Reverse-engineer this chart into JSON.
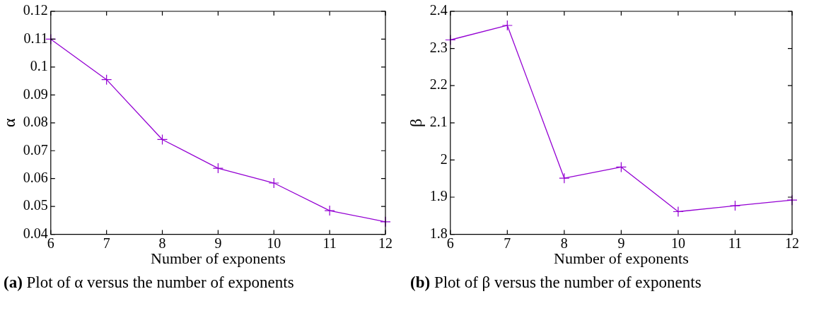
{
  "chart_data": [
    {
      "type": "line",
      "x": [
        6,
        7,
        8,
        9,
        10,
        11,
        12
      ],
      "series": [
        {
          "color": "#9400d3",
          "values": [
            0.11,
            0.0955,
            0.074,
            0.0637,
            0.0584,
            0.0485,
            0.0445
          ]
        }
      ],
      "xlabel": "Number of exponents",
      "ylabel": "α",
      "xlim": [
        6,
        12
      ],
      "xticks": [
        6,
        7,
        8,
        9,
        10,
        11,
        12
      ],
      "ylim": [
        0.04,
        0.12
      ],
      "yticks": [
        0.04,
        0.05,
        0.06,
        0.07,
        0.08,
        0.09,
        0.1,
        0.11,
        0.12
      ],
      "marker": "cross",
      "grid": false,
      "legend": false,
      "annotations": [
        "(a) Plot of α versus the number of exponents"
      ]
    },
    {
      "type": "line",
      "x": [
        6,
        7,
        8,
        9,
        10,
        11,
        12
      ],
      "series": [
        {
          "color": "#9400d3",
          "values": [
            2.323,
            2.362,
            1.951,
            1.981,
            1.861,
            1.877,
            1.892
          ]
        }
      ],
      "xlabel": "Number of exponents",
      "ylabel": "β",
      "xlim": [
        6,
        12
      ],
      "xticks": [
        6,
        7,
        8,
        9,
        10,
        11,
        12
      ],
      "ylim": [
        1.8,
        2.4
      ],
      "yticks": [
        1.8,
        1.9,
        2,
        2.1,
        2.2,
        2.3,
        2.4
      ],
      "marker": "cross",
      "grid": false,
      "legend": false,
      "annotations": [
        "(b) Plot of β versus the number of exponents"
      ]
    }
  ]
}
